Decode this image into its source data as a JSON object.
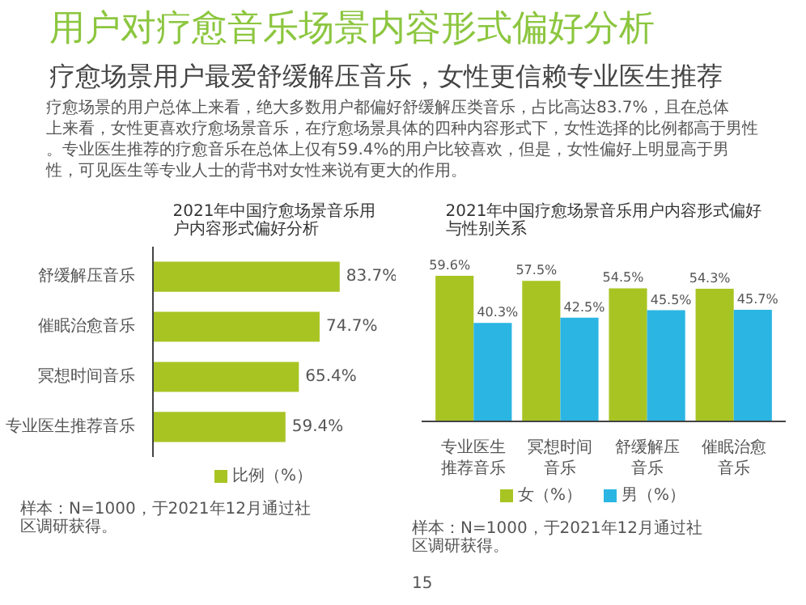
{
  "chart_data": [
    {
      "type": "other",
      "title": "用户对疗愈音乐场景内容形式偏好分析",
      "subtitle": "疗愈场景用户最爱舒缓解压音乐，女性更信赖专业医生推荐",
      "annotations": [
        "疗愈场景的用户总体上来看，绝大多数用户都偏好舒缓解压类音乐，占比高达83.7%，且在总体上来看，女性更喜欢疗愈场景音乐，在疗愈场景具体的四种内容形式下，女性选择的比例都高于男性。专业医生推荐的疗愈音乐在总体上仅有59.4%的用户比较喜欢，但是，女性偏好上明显高于男性，可见医生等专业人士的背书对女性来说有更大的作用。"
      ]
    },
    {
      "type": "bar",
      "orientation": "horizontal",
      "title": "2021年中国疗愈场景音乐用户内容形式偏好分析",
      "categories": [
        "舒缓解压音乐",
        "催眠治愈音乐",
        "冥想时间音乐",
        "专业医生推荐音乐"
      ],
      "series": [
        {
          "name": "比例（%）",
          "color": "#a8c423",
          "values": [
            83.7,
            74.7,
            65.4,
            59.4
          ],
          "value_labels": [
            "83.7%",
            "74.7%",
            "65.4%",
            "59.4%"
          ]
        }
      ],
      "legend": "bottom",
      "annotations": [
        "样本：N=1000，于2021年12月通过社区调研获得。"
      ]
    },
    {
      "type": "bar",
      "title": "2021年中国疗愈场景音乐用户内容形式偏好与性别关系",
      "categories": [
        "专业医生推荐音乐",
        "冥想时间音乐",
        "舒缓解压音乐",
        "催眠治愈音乐"
      ],
      "series": [
        {
          "name": "女（%）",
          "color": "#a8c423",
          "values": [
            59.6,
            57.5,
            54.5,
            54.3
          ],
          "value_labels": [
            "59.6%",
            "57.5%",
            "54.5%",
            "54.3%"
          ]
        },
        {
          "name": "男（%）",
          "color": "#2bb5e3",
          "values": [
            40.3,
            42.5,
            45.5,
            45.7
          ],
          "value_labels": [
            "40.3%",
            "42.5%",
            "45.5%",
            "45.7%"
          ]
        }
      ],
      "legend": "bottom",
      "annotations": [
        "样本：N=1000，于2021年12月通过社区调研获得。",
        "15"
      ]
    }
  ]
}
